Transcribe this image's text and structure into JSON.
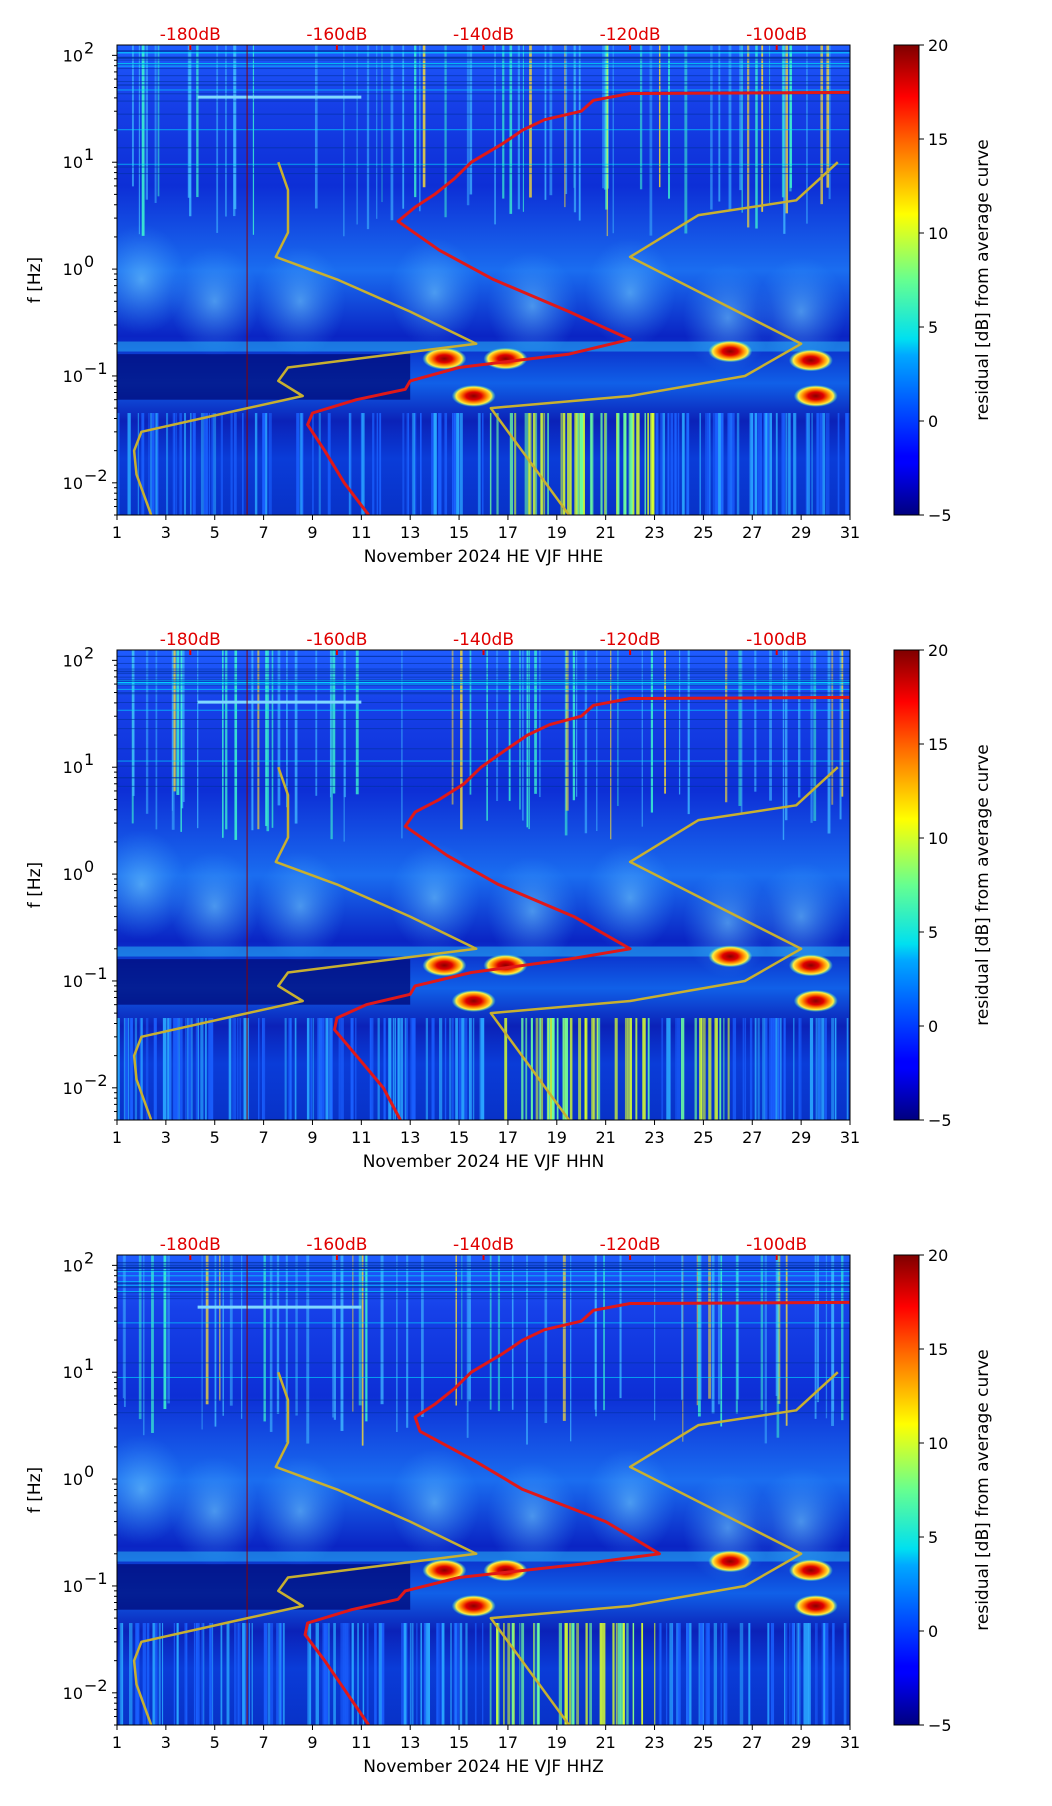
{
  "chart_data": {
    "type": "heatmap",
    "colorbar": {
      "label": "residual [dB] from average curve",
      "range": [
        -5,
        20
      ],
      "ticks": [
        "20",
        "15",
        "10",
        "5",
        "0",
        "−5"
      ],
      "tick_values": [
        20,
        15,
        10,
        5,
        0,
        -5
      ]
    },
    "x_ticks": [
      "1",
      "3",
      "5",
      "7",
      "9",
      "11",
      "13",
      "15",
      "17",
      "19",
      "21",
      "23",
      "25",
      "27",
      "29",
      "31"
    ],
    "x_range": [
      1,
      31
    ],
    "y_label": "f [Hz]",
    "y_range": [
      0.005,
      125
    ],
    "y_ticks": [
      {
        "exp": "2",
        "value": 100
      },
      {
        "exp": "1",
        "value": 10
      },
      {
        "exp": "0",
        "value": 1
      },
      {
        "exp": "−1",
        "value": 0.1
      },
      {
        "exp": "−2",
        "value": 0.01
      }
    ],
    "db_ticks": [
      {
        "label": "-180dB",
        "day": 4
      },
      {
        "label": "-160dB",
        "day": 10
      },
      {
        "label": "-140dB",
        "day": 16
      },
      {
        "label": "-120dB",
        "day": 22
      },
      {
        "label": "-100dB",
        "day": 28
      }
    ],
    "noise_model_high": [
      [
        10,
        7.6
      ],
      [
        5.5,
        8
      ],
      [
        2.2,
        8
      ],
      [
        1.3,
        7.5
      ],
      [
        0.8,
        10
      ],
      [
        0.4,
        13
      ],
      [
        0.2,
        15.7
      ],
      [
        0.12,
        8
      ],
      [
        0.09,
        7.6
      ],
      [
        0.065,
        8.6
      ],
      [
        0.048,
        6
      ],
      [
        0.03,
        2
      ],
      [
        0.02,
        1.7
      ],
      [
        0.012,
        1.8
      ],
      [
        0.005,
        2.4
      ]
    ],
    "noise_model_low": [
      [
        10,
        30.5
      ],
      [
        4.4,
        28.8
      ],
      [
        3.2,
        24.8
      ],
      [
        1.3,
        22
      ],
      [
        0.2,
        29
      ],
      [
        0.1,
        26.7
      ],
      [
        0.065,
        22
      ],
      [
        0.05,
        16.3
      ],
      [
        0.005,
        19.5
      ]
    ],
    "panels": [
      {
        "xlabel": "November 2024 HE VJF  HHE",
        "average_curve": [
          [
            45,
            31
          ],
          [
            44,
            22
          ],
          [
            38,
            20.5
          ],
          [
            30,
            20
          ],
          [
            25,
            18.5
          ],
          [
            20,
            17.6
          ],
          [
            15,
            16.8
          ],
          [
            10,
            15.5
          ],
          [
            7,
            14.8
          ],
          [
            5,
            14
          ],
          [
            3.8,
            13.2
          ],
          [
            2.8,
            12.5
          ],
          [
            1.5,
            14.2
          ],
          [
            0.8,
            16.4
          ],
          [
            0.4,
            19.5
          ],
          [
            0.22,
            22
          ],
          [
            0.16,
            19.5
          ],
          [
            0.12,
            15
          ],
          [
            0.09,
            13
          ],
          [
            0.075,
            12.8
          ],
          [
            0.06,
            10.8
          ],
          [
            0.045,
            9
          ],
          [
            0.035,
            8.8
          ],
          [
            0.02,
            9.5
          ],
          [
            0.01,
            10.3
          ],
          [
            0.005,
            11.3
          ]
        ],
        "hotspots": [
          [
            14.4,
            0.145
          ],
          [
            16.9,
            0.145
          ],
          [
            26.1,
            0.17
          ],
          [
            29.4,
            0.14
          ],
          [
            29.6,
            0.065
          ],
          [
            15.6,
            0.065
          ]
        ]
      },
      {
        "xlabel": "November 2024 HE VJF  HHN",
        "average_curve": [
          [
            45,
            31
          ],
          [
            44,
            22
          ],
          [
            38,
            20.5
          ],
          [
            30,
            20
          ],
          [
            25,
            18.7
          ],
          [
            20,
            17.8
          ],
          [
            15,
            17
          ],
          [
            10,
            15.9
          ],
          [
            7,
            15.2
          ],
          [
            5,
            14.2
          ],
          [
            3.8,
            13.2
          ],
          [
            2.8,
            12.8
          ],
          [
            1.5,
            14.5
          ],
          [
            0.8,
            16.6
          ],
          [
            0.4,
            19.7
          ],
          [
            0.2,
            22
          ],
          [
            0.16,
            19.5
          ],
          [
            0.12,
            15.5
          ],
          [
            0.09,
            13.2
          ],
          [
            0.075,
            13
          ],
          [
            0.06,
            11.2
          ],
          [
            0.045,
            10
          ],
          [
            0.035,
            9.9
          ],
          [
            0.02,
            10.8
          ],
          [
            0.01,
            11.9
          ],
          [
            0.005,
            12.6
          ]
        ],
        "hotspots": [
          [
            14.4,
            0.14
          ],
          [
            16.9,
            0.14
          ],
          [
            26.1,
            0.17
          ],
          [
            29.4,
            0.14
          ],
          [
            29.6,
            0.065
          ],
          [
            15.6,
            0.065
          ]
        ]
      },
      {
        "xlabel": "November 2024 HE VJF  HHZ",
        "average_curve": [
          [
            45,
            31
          ],
          [
            44,
            22
          ],
          [
            38,
            20.5
          ],
          [
            30,
            20
          ],
          [
            25,
            18.5
          ],
          [
            20,
            17.6
          ],
          [
            15,
            16.8
          ],
          [
            10,
            15.5
          ],
          [
            7,
            14.8
          ],
          [
            5,
            14
          ],
          [
            3.8,
            13.2
          ],
          [
            2.8,
            13.4
          ],
          [
            1.5,
            15.6
          ],
          [
            0.8,
            17.6
          ],
          [
            0.4,
            21
          ],
          [
            0.2,
            23.2
          ],
          [
            0.16,
            20
          ],
          [
            0.12,
            15
          ],
          [
            0.09,
            12.8
          ],
          [
            0.075,
            12.5
          ],
          [
            0.06,
            10.6
          ],
          [
            0.045,
            8.8
          ],
          [
            0.035,
            8.7
          ],
          [
            0.02,
            9.5
          ],
          [
            0.01,
            10.4
          ],
          [
            0.005,
            11.3
          ]
        ],
        "hotspots": [
          [
            14.4,
            0.14
          ],
          [
            16.9,
            0.14
          ],
          [
            26.1,
            0.17
          ],
          [
            29.4,
            0.14
          ],
          [
            29.6,
            0.065
          ],
          [
            15.6,
            0.065
          ]
        ]
      }
    ]
  }
}
